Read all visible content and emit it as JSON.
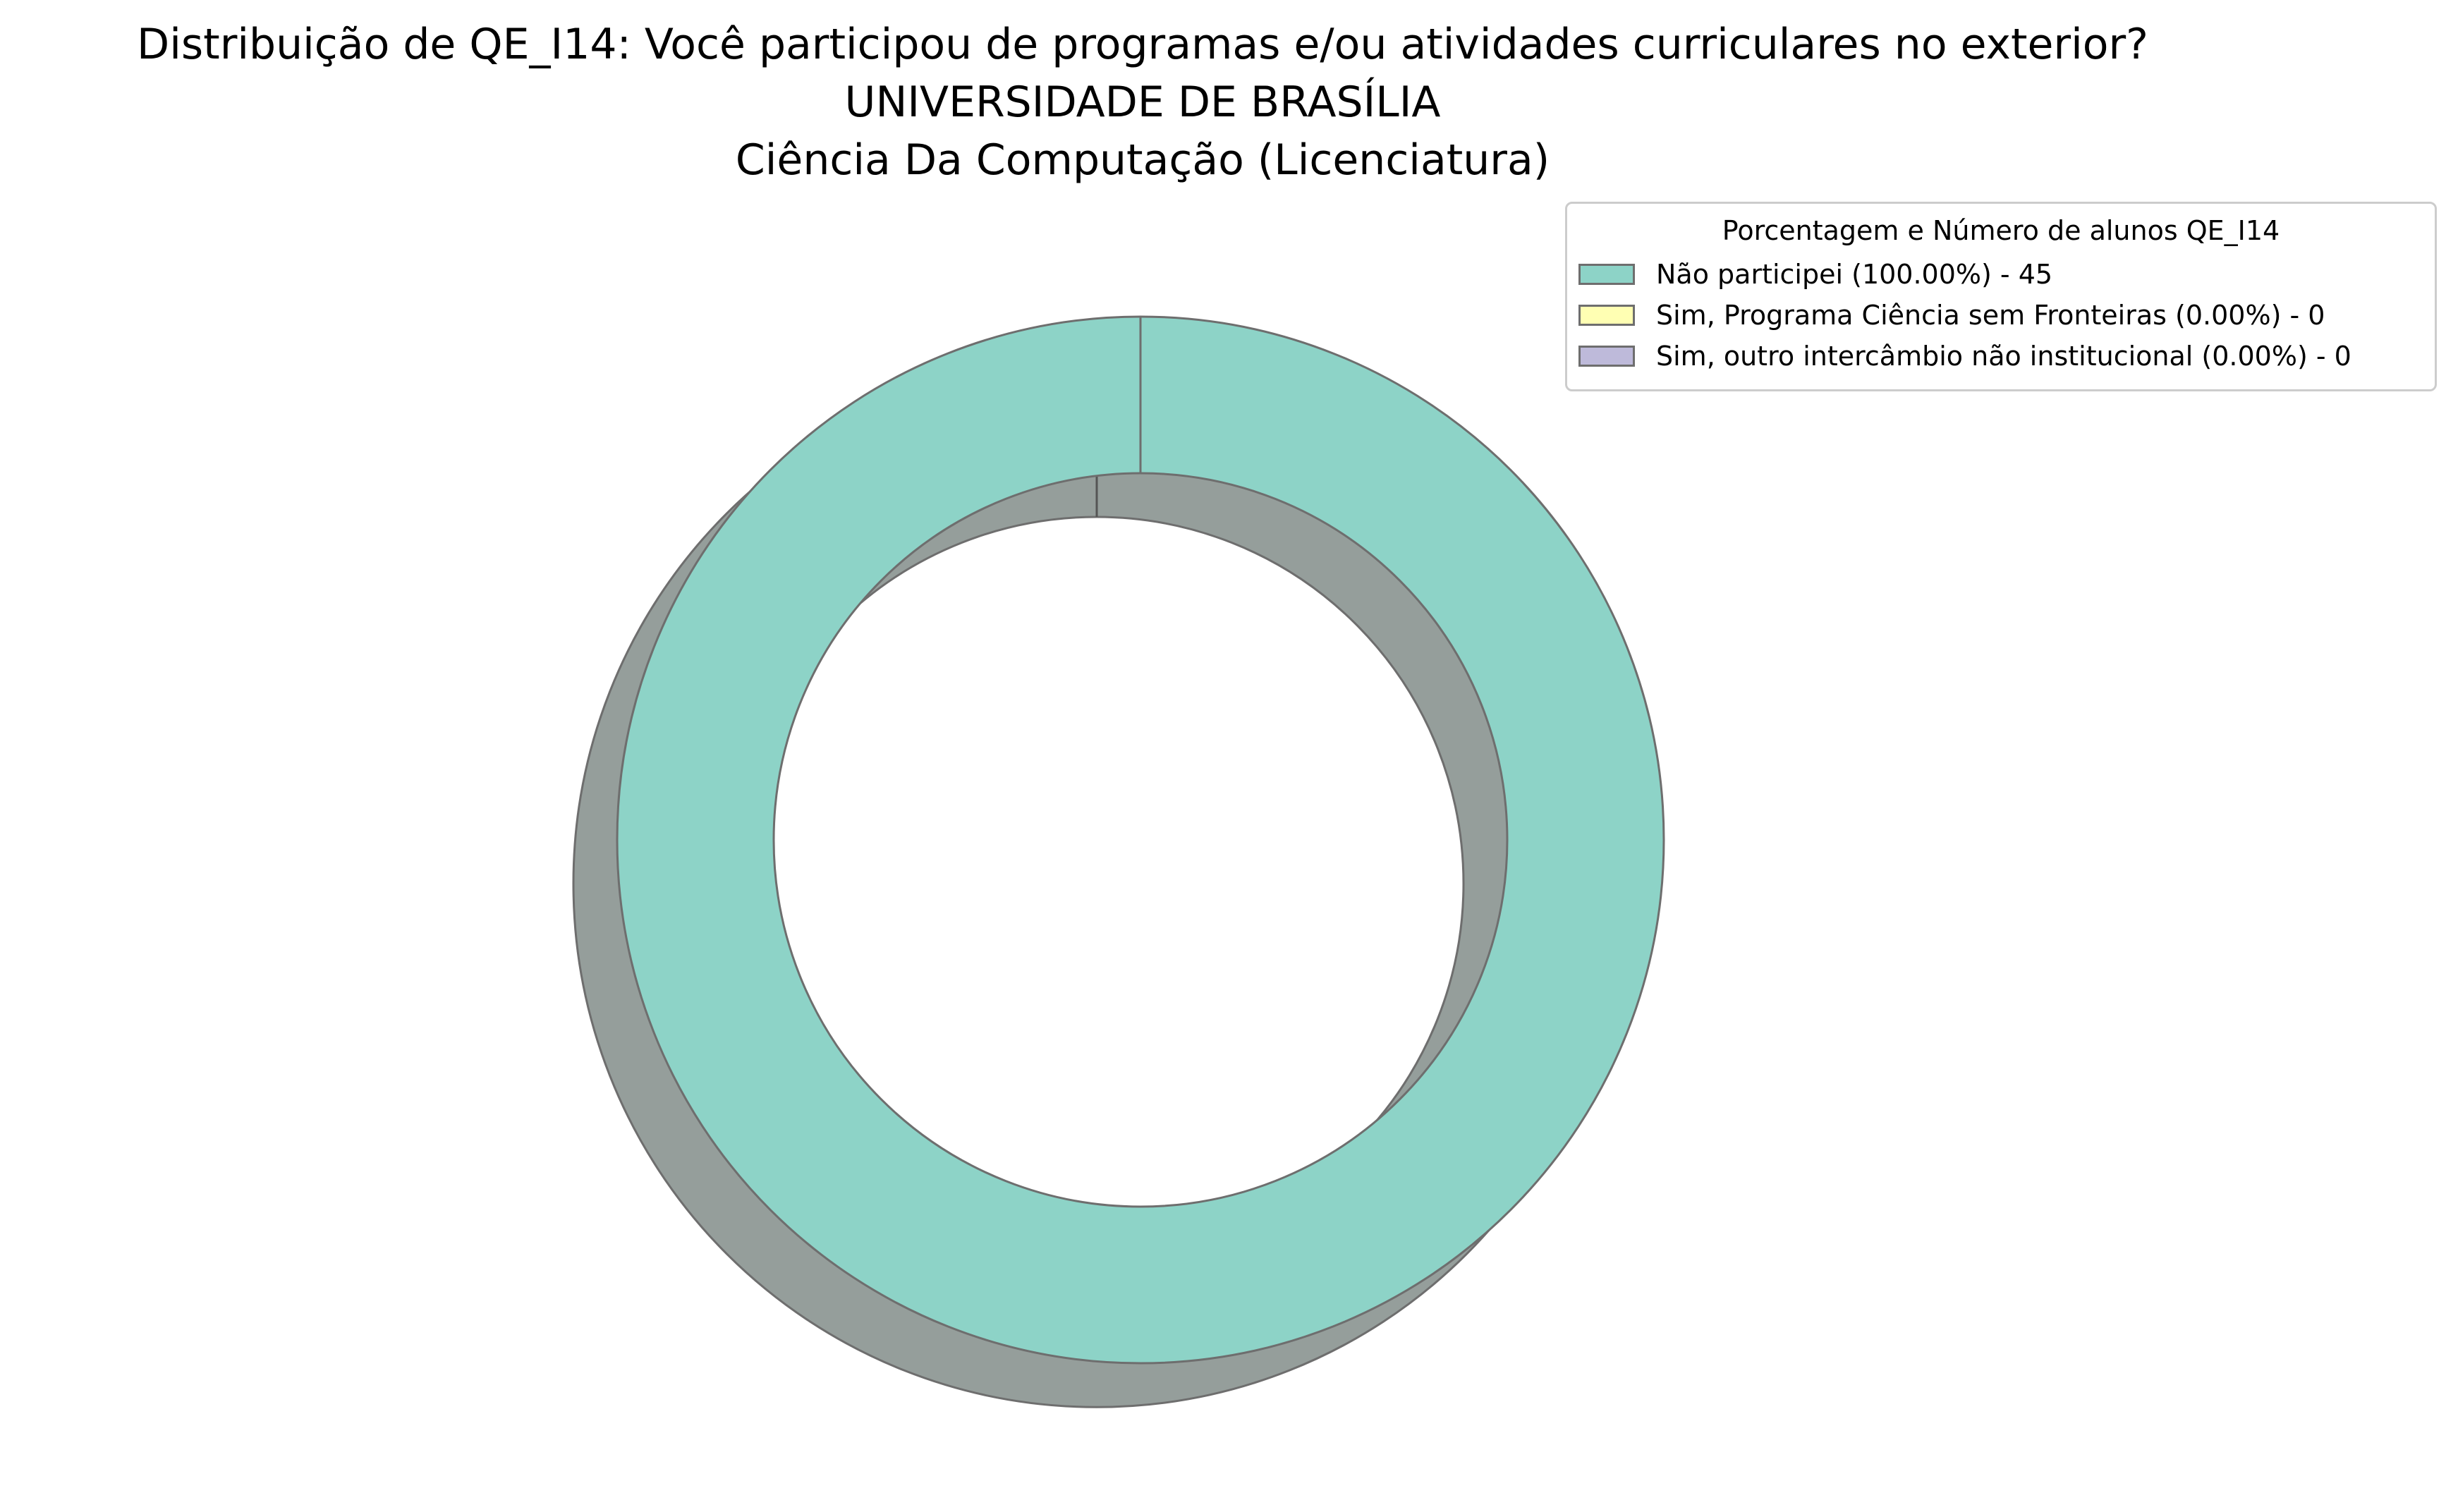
{
  "chart_data": {
    "type": "pie",
    "variant": "donut",
    "shadow": true,
    "title": [
      "Distribuição de QE_I14: Você participou de programas e/ou atividades curriculares no exterior?",
      "UNIVERSIDADE DE BRASÍLIA",
      "Ciência Da Computação (Licenciatura)"
    ],
    "legend": {
      "title": "Porcentagem e Número de alunos QE_I14",
      "placement": "upper-right"
    },
    "categories": [
      "Não participei (100.00%) - 45",
      "Sim, Programa Ciência sem Fronteiras (0.00%) - 0",
      "Sim, outro intercâmbio não institucional (0.00%) - 0"
    ],
    "values": [
      45,
      0,
      0
    ],
    "colors": [
      "#8dd3c7",
      "#ffffb3",
      "#bebada"
    ],
    "edge_color": "#6e6e6e",
    "shadow_color": "#959e9b",
    "start_angle_deg": 90
  }
}
